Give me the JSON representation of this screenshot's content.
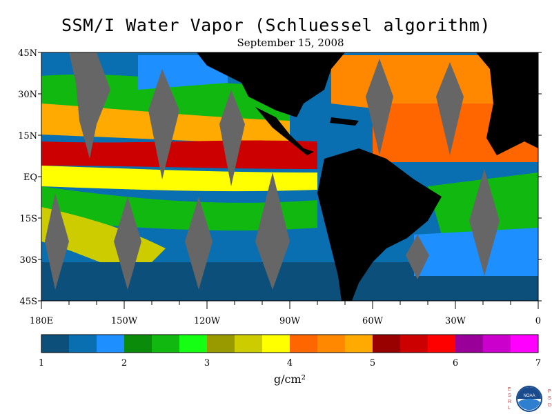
{
  "header": {
    "title": "SSM/I Water Vapor (Schluessel algorithm)",
    "subtitle": "September 15, 2008"
  },
  "map": {
    "lat_labels": [
      "45N",
      "30N",
      "15N",
      "EQ",
      "15S",
      "30S",
      "45S"
    ],
    "lon_labels": [
      "180E",
      "150W",
      "120W",
      "90W",
      "60W",
      "30W",
      "0"
    ],
    "lon_range": [
      -180,
      0
    ],
    "lat_range": [
      -45,
      45
    ]
  },
  "colorbar": {
    "ticks": [
      "1",
      "2",
      "3",
      "4",
      "5",
      "6",
      "7"
    ],
    "units": "g/cm²",
    "range": [
      1,
      7
    ],
    "colors": [
      "#0b4f7a",
      "#0a6fb0",
      "#1d8fff",
      "#0a8c0a",
      "#10b810",
      "#14ff14",
      "#999900",
      "#cccc00",
      "#ffff00",
      "#ff6600",
      "#ff8800",
      "#ffaa00",
      "#990000",
      "#cc0000",
      "#ff0000",
      "#990099",
      "#cc00cc",
      "#ff00ff"
    ]
  },
  "logo": {
    "left_letters": "ESRL",
    "right_letters": "PSD",
    "badge": "NOAA"
  }
}
